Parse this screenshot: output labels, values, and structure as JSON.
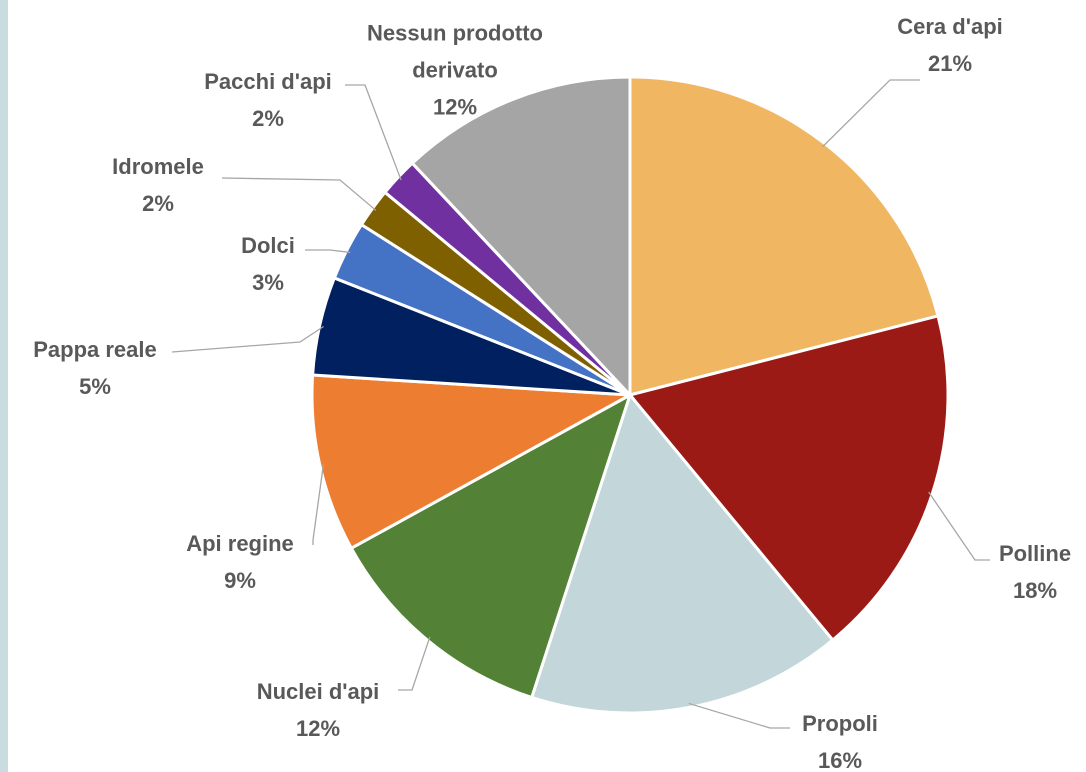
{
  "chart_data": {
    "type": "pie",
    "categories": [
      "Cera d'api",
      "Polline",
      "Propoli",
      "Nuclei d'api",
      "Api regine",
      "Pappa reale",
      "Dolci",
      "Idromele",
      "Pacchi d'api",
      "Nessun prodotto derivato"
    ],
    "values": [
      21,
      18,
      16,
      12,
      9,
      5,
      3,
      2,
      2,
      12
    ],
    "value_labels": [
      "21%",
      "18%",
      "16%",
      "12%",
      "9%",
      "5%",
      "3%",
      "2%",
      "2%",
      "12%"
    ],
    "colors": [
      "#f0b662",
      "#9b1a16",
      "#c3d6d9",
      "#538135",
      "#ed7d31",
      "#002060",
      "#4472c4",
      "#7f6000",
      "#7030a0",
      "#a5a5a5"
    ]
  }
}
